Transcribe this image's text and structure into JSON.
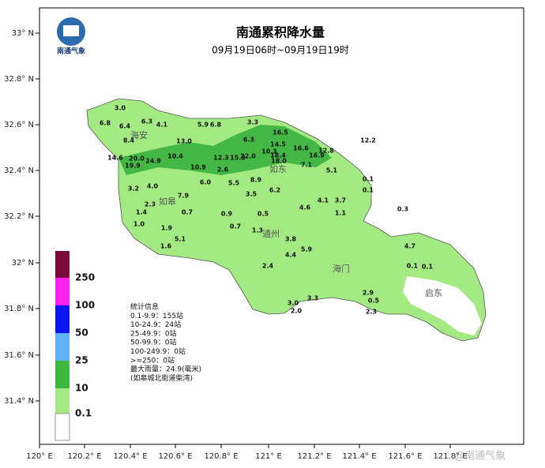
{
  "header": {
    "logo_text": "南通气象",
    "title": "南通累积降水量",
    "subtitle": "09月19日06时~09月19日19时"
  },
  "x_ticks": [
    "120° E",
    "120.2° E",
    "120.4° E",
    "120.6° E",
    "120.8° E",
    "121° E",
    "121.2° E",
    "121.4° E",
    "121.6° E",
    "121.8° E"
  ],
  "y_ticks": [
    "33° N",
    "32.8° N",
    "32.6° N",
    "32.4° N",
    "32.2° N",
    "32° N",
    "31.8° N",
    "31.6° N",
    "31.4° N"
  ],
  "legend": [
    "250",
    "100",
    "50",
    "25",
    "10",
    "0.1"
  ],
  "stats": [
    "统计信息",
    "0.1-9.9：155站",
    "10-24.9：24站",
    "25-49.9：0站",
    "50-99.9：0站",
    "100-249.9：0站",
    ">=250：0站",
    "最大雨量：24.9(毫米)",
    "(如皋城北街道柴湾)"
  ],
  "places": [
    "海安",
    "如东",
    "如皋",
    "通州",
    "海门",
    "启东"
  ],
  "stations": [
    "16.5",
    "14.5",
    "16.6",
    "10.3",
    "18.4",
    "16.9",
    "12.8",
    "18.0",
    "22.0",
    "12.3",
    "15.3",
    "6.3",
    "3.3",
    "5.9",
    "6.8",
    "7.1",
    "5.1",
    "12.2",
    "24.9",
    "20.0",
    "14.6",
    "19.9",
    "13.0",
    "10.4",
    "10.9",
    "8.4",
    "6.4",
    "6.3",
    "4.1",
    "6.8",
    "3.0",
    "5.5",
    "8.9",
    "6.0",
    "3.2",
    "4.0",
    "7.9",
    "1.4",
    "2.3",
    "0.7",
    "1.0",
    "1.9",
    "3.5",
    "6.2",
    "2.6",
    "0.3",
    "0.1",
    "0.1",
    "4.7",
    "0.1",
    "0.1",
    "2.9",
    "2.3",
    "0.5",
    "3.0",
    "2.0",
    "3.3",
    "4.4",
    "5.9",
    "3.8",
    "1.3",
    "2.4",
    "0.9",
    "0.5",
    "4.6",
    "4.1",
    "3.7",
    "1.1",
    "5.1",
    "1.6",
    "0.7"
  ],
  "footer": {
    "watermark": "@南通气象"
  }
}
